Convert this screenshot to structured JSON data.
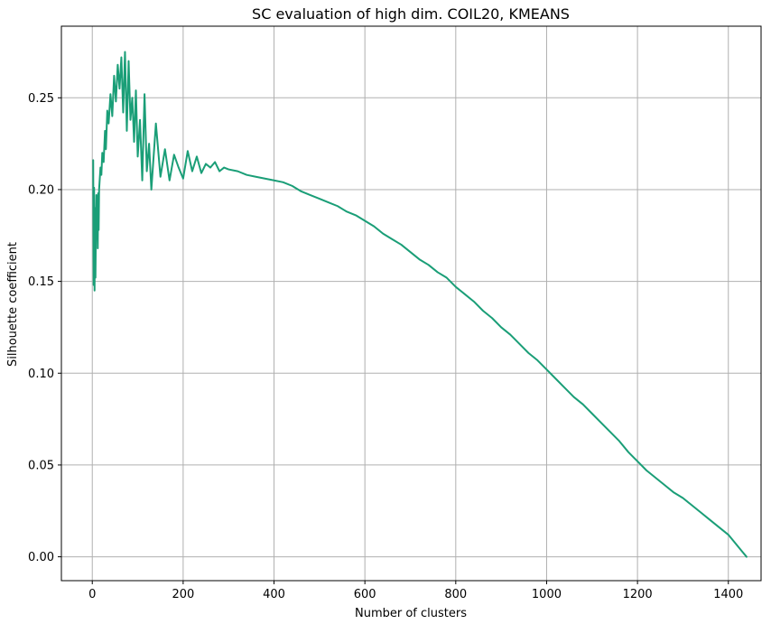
{
  "chart_data": {
    "type": "line",
    "title": "SC evaluation of high dim. COIL20, KMEANS",
    "xlabel": "Number of clusters",
    "ylabel": "Silhouette coefficient",
    "xlim": [
      -68,
      1472
    ],
    "ylim": [
      -0.013,
      0.289
    ],
    "xticks": [
      0,
      200,
      400,
      600,
      800,
      1000,
      1200,
      1400
    ],
    "xtick_labels": [
      "0",
      "200",
      "400",
      "600",
      "800",
      "1000",
      "1200",
      "1400"
    ],
    "yticks": [
      0.0,
      0.05,
      0.1,
      0.15,
      0.2,
      0.25
    ],
    "ytick_labels": [
      "0.00",
      "0.05",
      "0.10",
      "0.15",
      "0.20",
      "0.25"
    ],
    "grid": true,
    "legend": "none",
    "series": [
      {
        "color": "#1a9e77",
        "x": [
          2,
          3,
          4,
          5,
          6,
          7,
          8,
          9,
          10,
          11,
          12,
          13,
          14,
          15,
          16,
          18,
          20,
          22,
          25,
          28,
          30,
          33,
          36,
          40,
          44,
          48,
          52,
          56,
          60,
          64,
          68,
          72,
          76,
          80,
          84,
          88,
          92,
          96,
          100,
          105,
          110,
          115,
          120,
          125,
          130,
          140,
          150,
          160,
          170,
          180,
          190,
          200,
          210,
          220,
          230,
          240,
          250,
          260,
          270,
          280,
          290,
          300,
          320,
          340,
          360,
          380,
          400,
          420,
          440,
          460,
          480,
          500,
          520,
          540,
          560,
          580,
          600,
          620,
          640,
          660,
          680,
          700,
          720,
          740,
          760,
          780,
          800,
          820,
          840,
          860,
          880,
          900,
          920,
          940,
          960,
          980,
          1000,
          1020,
          1040,
          1060,
          1080,
          1100,
          1120,
          1140,
          1160,
          1180,
          1200,
          1220,
          1240,
          1260,
          1280,
          1300,
          1320,
          1340,
          1360,
          1380,
          1400,
          1410,
          1420,
          1430,
          1440
        ],
        "y": [
          0.216,
          0.148,
          0.201,
          0.145,
          0.19,
          0.152,
          0.18,
          0.197,
          0.176,
          0.188,
          0.168,
          0.198,
          0.178,
          0.2,
          0.204,
          0.212,
          0.208,
          0.22,
          0.215,
          0.232,
          0.222,
          0.243,
          0.236,
          0.252,
          0.24,
          0.262,
          0.248,
          0.268,
          0.255,
          0.272,
          0.242,
          0.275,
          0.232,
          0.27,
          0.238,
          0.25,
          0.226,
          0.254,
          0.218,
          0.238,
          0.205,
          0.252,
          0.21,
          0.225,
          0.2,
          0.236,
          0.207,
          0.222,
          0.205,
          0.219,
          0.212,
          0.206,
          0.221,
          0.21,
          0.218,
          0.209,
          0.214,
          0.212,
          0.215,
          0.21,
          0.212,
          0.211,
          0.21,
          0.208,
          0.207,
          0.206,
          0.205,
          0.204,
          0.202,
          0.199,
          0.197,
          0.195,
          0.193,
          0.191,
          0.188,
          0.186,
          0.183,
          0.18,
          0.176,
          0.173,
          0.17,
          0.166,
          0.162,
          0.159,
          0.155,
          0.152,
          0.147,
          0.143,
          0.139,
          0.134,
          0.13,
          0.125,
          0.121,
          0.116,
          0.111,
          0.107,
          0.102,
          0.097,
          0.092,
          0.087,
          0.083,
          0.078,
          0.073,
          0.068,
          0.063,
          0.057,
          0.052,
          0.047,
          0.043,
          0.039,
          0.035,
          0.032,
          0.028,
          0.024,
          0.02,
          0.016,
          0.012,
          0.009,
          0.006,
          0.003,
          0.0
        ]
      }
    ]
  }
}
